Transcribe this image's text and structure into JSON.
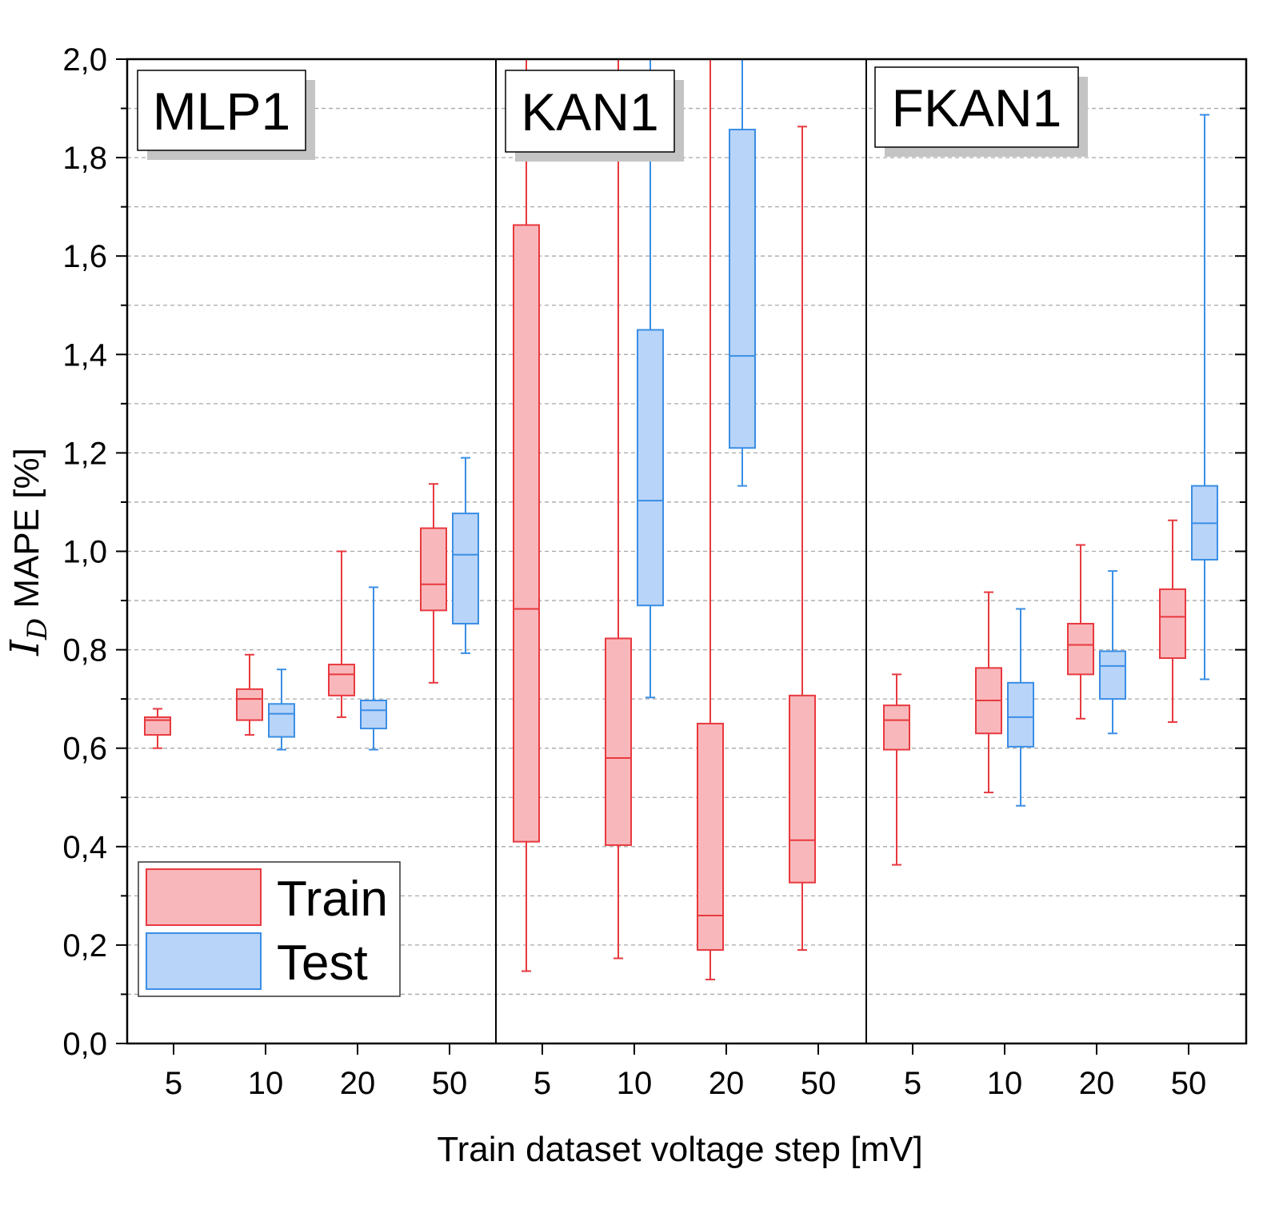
{
  "chart_data": {
    "type": "box",
    "xlabel": "Train dataset voltage step [mV]",
    "ylabel": {
      "symbol": "I",
      "subscript": "D",
      "rest": " MAPE [%]"
    },
    "ylim": [
      0,
      2
    ],
    "yticks": [
      "0,0",
      "0,2",
      "0,4",
      "0,6",
      "0,8",
      "1,0",
      "1,2",
      "1,4",
      "1,6",
      "1,8",
      "2,0"
    ],
    "grid": "horizontal dashed",
    "legend_position": "bottom-left",
    "categories": [
      "5",
      "10",
      "20",
      "50"
    ],
    "series": [
      {
        "name": "Train",
        "fill": "#f8b8bb",
        "stroke": "#e8393f"
      },
      {
        "name": "Test",
        "fill": "#b8d4f8",
        "stroke": "#3a8ee6"
      }
    ],
    "panels": [
      {
        "label": "MLP1",
        "boxes": {
          "Train": [
            {
              "category": "5",
              "min": 0.6,
              "q1": 0.627,
              "median": 0.657,
              "q3": 0.663,
              "max": 0.68
            },
            {
              "category": "10",
              "min": 0.627,
              "q1": 0.657,
              "median": 0.7,
              "q3": 0.72,
              "max": 0.79
            },
            {
              "category": "20",
              "min": 0.663,
              "q1": 0.707,
              "median": 0.75,
              "q3": 0.77,
              "max": 1.0
            },
            {
              "category": "50",
              "min": 0.733,
              "q1": 0.88,
              "median": 0.933,
              "q3": 1.047,
              "max": 1.137
            }
          ],
          "Test": [
            {
              "category": "10",
              "min": 0.597,
              "q1": 0.623,
              "median": 0.67,
              "q3": 0.69,
              "max": 0.76
            },
            {
              "category": "20",
              "min": 0.597,
              "q1": 0.64,
              "median": 0.677,
              "q3": 0.697,
              "max": 0.927
            },
            {
              "category": "50",
              "min": 0.793,
              "q1": 0.853,
              "median": 0.993,
              "q3": 1.077,
              "max": 1.19
            }
          ]
        }
      },
      {
        "label": "KAN1",
        "boxes": {
          "Train": [
            {
              "category": "5",
              "min": 0.147,
              "q1": 0.41,
              "median": 0.883,
              "q3": 1.663,
              "max": 2.0
            },
            {
              "category": "10",
              "min": 0.173,
              "q1": 0.403,
              "median": 0.58,
              "q3": 0.823,
              "max": 2.0
            },
            {
              "category": "20",
              "min": 0.13,
              "q1": 0.19,
              "median": 0.26,
              "q3": 0.65,
              "max": 2.0
            },
            {
              "category": "50",
              "min": 0.19,
              "q1": 0.327,
              "median": 0.413,
              "q3": 0.707,
              "max": 1.863
            }
          ],
          "Test": [
            {
              "category": "10",
              "min": 0.703,
              "q1": 0.89,
              "median": 1.103,
              "q3": 1.45,
              "max": 2.0
            },
            {
              "category": "20",
              "min": 1.133,
              "q1": 1.21,
              "median": 1.397,
              "q3": 1.857,
              "max": 2.0
            }
          ]
        }
      },
      {
        "label": "FKAN1",
        "boxes": {
          "Train": [
            {
              "category": "5",
              "min": 0.363,
              "q1": 0.597,
              "median": 0.657,
              "q3": 0.687,
              "max": 0.75
            },
            {
              "category": "10",
              "min": 0.51,
              "q1": 0.63,
              "median": 0.697,
              "q3": 0.763,
              "max": 0.917
            },
            {
              "category": "20",
              "min": 0.66,
              "q1": 0.75,
              "median": 0.81,
              "q3": 0.853,
              "max": 1.013
            },
            {
              "category": "50",
              "min": 0.653,
              "q1": 0.783,
              "median": 0.867,
              "q3": 0.923,
              "max": 1.063
            }
          ],
          "Test": [
            {
              "category": "10",
              "min": 0.483,
              "q1": 0.603,
              "median": 0.663,
              "q3": 0.733,
              "max": 0.883
            },
            {
              "category": "20",
              "min": 0.63,
              "q1": 0.7,
              "median": 0.767,
              "q3": 0.797,
              "max": 0.96
            },
            {
              "category": "50",
              "min": 0.74,
              "q1": 0.983,
              "median": 1.057,
              "q3": 1.133,
              "max": 1.887
            }
          ]
        }
      }
    ]
  }
}
